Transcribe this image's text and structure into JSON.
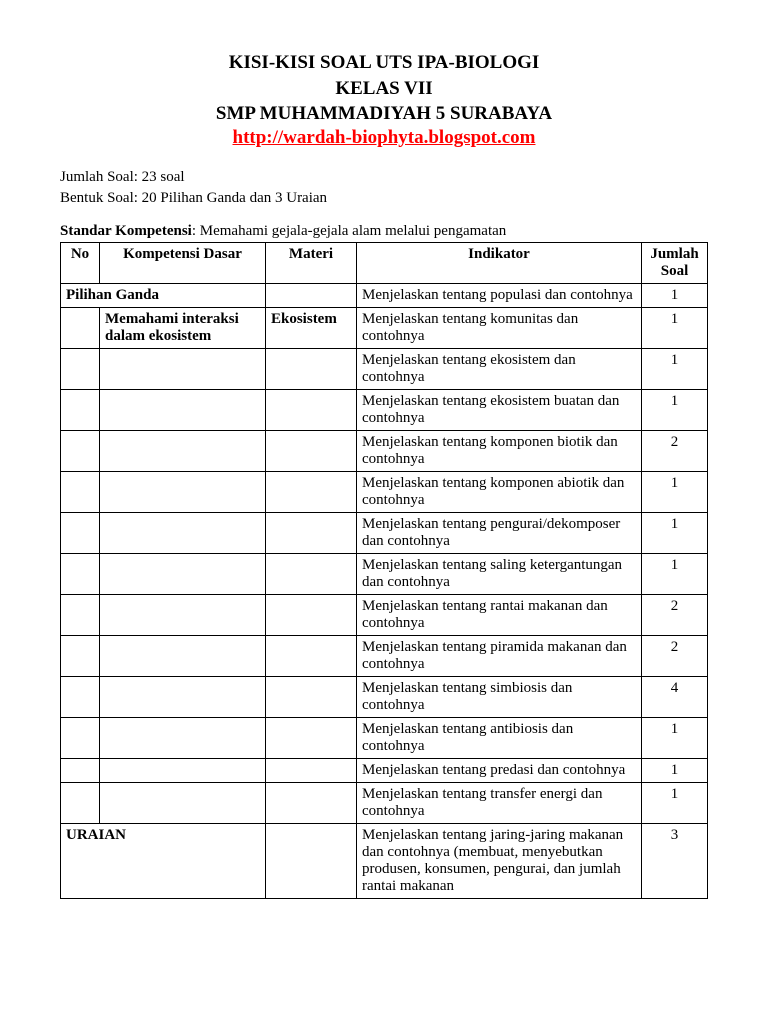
{
  "title": {
    "line1": "KISI-KISI SOAL UTS IPA-BIOLOGI",
    "line2": "KELAS VII",
    "line3": "SMP MUHAMMADIYAH 5 SURABAYA",
    "url": "http://wardah-biophyta.blogspot.com"
  },
  "meta": {
    "jumlah_soal_label": "Jumlah Soal:",
    "jumlah_soal_value": "23 soal",
    "bentuk_soal_label": "Bentuk Soal:",
    "bentuk_soal_value": "20 Pilihan Ganda dan 3 Uraian"
  },
  "sk": {
    "label": "Standar Kompetensi",
    "value": ": Memahami gejala-gejala alam melalui pengamatan"
  },
  "table": {
    "headers": {
      "no": "No",
      "kd": "Kompetensi Dasar",
      "materi": "Materi",
      "indikator": "Indikator",
      "jumlah": "Jumlah Soal"
    },
    "rows": [
      {
        "no": "",
        "kd": "Pilihan Ganda",
        "kd_bold": true,
        "kd_colspan": 2,
        "materi": "",
        "indikator": "Menjelaskan tentang populasi dan contohnya",
        "jml": "1"
      },
      {
        "no": "",
        "kd": "Memahami interaksi dalam ekosistem",
        "kd_bold": true,
        "materi": "Ekosistem",
        "materi_bold": true,
        "indikator": "Menjelaskan tentang komunitas dan contohnya",
        "jml": "1"
      },
      {
        "no": "",
        "kd": "",
        "materi": "",
        "indikator": "Menjelaskan tentang ekosistem dan contohnya",
        "jml": "1"
      },
      {
        "no": "",
        "kd": "",
        "materi": "",
        "indikator": "Menjelaskan tentang ekosistem buatan dan contohnya",
        "jml": "1"
      },
      {
        "no": "",
        "kd": "",
        "materi": "",
        "indikator": "Menjelaskan tentang komponen biotik dan contohnya",
        "jml": "2"
      },
      {
        "no": "",
        "kd": "",
        "materi": "",
        "indikator": "Menjelaskan tentang komponen abiotik dan contohnya",
        "jml": "1"
      },
      {
        "no": "",
        "kd": "",
        "materi": "",
        "indikator": "Menjelaskan tentang pengurai/dekomposer dan contohnya",
        "jml": "1"
      },
      {
        "no": "",
        "kd": "",
        "materi": "",
        "indikator": "Menjelaskan tentang saling ketergantungan dan contohnya",
        "jml": "1"
      },
      {
        "no": "",
        "kd": "",
        "materi": "",
        "indikator": "Menjelaskan tentang rantai makanan  dan contohnya",
        "jml": "2"
      },
      {
        "no": "",
        "kd": "",
        "materi": "",
        "indikator": "Menjelaskan tentang piramida makanan  dan contohnya",
        "jml": "2"
      },
      {
        "no": "",
        "kd": "",
        "materi": "",
        "indikator": "Menjelaskan tentang simbiosis dan contohnya",
        "jml": "4"
      },
      {
        "no": "",
        "kd": "",
        "materi": "",
        "indikator": "Menjelaskan tentang antibiosis dan contohnya",
        "jml": "1"
      },
      {
        "no": "",
        "kd": "",
        "materi": "",
        "indikator": "Menjelaskan tentang predasi dan contohnya",
        "jml": "1"
      },
      {
        "no": "",
        "kd": "",
        "materi": "",
        "indikator": "Menjelaskan tentang transfer energi  dan contohnya",
        "jml": "1"
      },
      {
        "no": "",
        "kd": "URAIAN",
        "kd_bold": true,
        "kd_colspan": 2,
        "materi": "",
        "indikator": "Menjelaskan tentang jaring-jaring makanan  dan contohnya (membuat, menyebutkan produsen, konsumen, pengurai, dan jumlah rantai makanan",
        "jml": "3"
      }
    ]
  },
  "colors": {
    "text": "#000000",
    "url": "#ff0000",
    "border": "#000000",
    "background": "#ffffff"
  },
  "fonts": {
    "body_family": "Times New Roman",
    "title_size_pt": 14,
    "body_size_pt": 11
  }
}
